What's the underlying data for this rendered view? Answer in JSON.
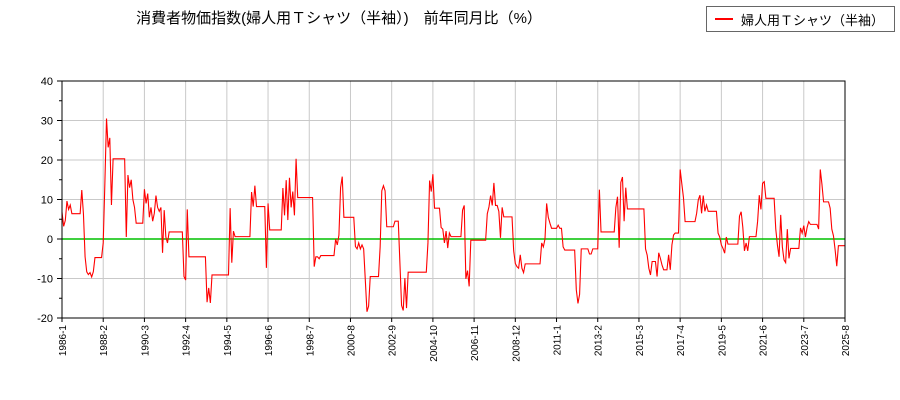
{
  "title": "消費者物価指数(婦人用Ｔシャツ（半袖）)　前年同月比（%）",
  "legend": {
    "label": "婦人用Ｔシャツ（半袖）",
    "line_color": "#ff0000"
  },
  "chart_data": {
    "type": "line",
    "title": "消費者物価指数(婦人用Ｔシャツ（半袖）)　前年同月比（%）",
    "xlabel": "",
    "ylabel": "",
    "x_start": "1986-1",
    "x_end": "2025-8",
    "x_tick_labels": [
      "1986-1",
      "1988-2",
      "1990-3",
      "1992-4",
      "1994-5",
      "1996-6",
      "1998-7",
      "2000-8",
      "2002-9",
      "2004-10",
      "2006-11",
      "2008-12",
      "2011-1",
      "2013-2",
      "2015-3",
      "2017-4",
      "2019-5",
      "2021-6",
      "2023-7",
      "2025-8"
    ],
    "x_tick_step_months": 25,
    "ylim": [
      -20,
      40
    ],
    "y_ticks": [
      40,
      30,
      20,
      10,
      0,
      -10,
      -20
    ],
    "y_minor_step": 5,
    "grid": "on",
    "grid_color": "#c9c9c9",
    "zero_line_color": "#00c000",
    "axis_color": "#000000",
    "legend_position": "top-right",
    "series": [
      {
        "name": "婦人用Ｔシャツ（半袖）",
        "color": "#ff0000",
        "values": [
          6.8,
          3.2,
          4.7,
          9.6,
          7.5,
          8.6,
          6.4,
          6.4,
          6.4,
          6.4,
          6.4,
          6.4,
          12.4,
          6.4,
          -4.5,
          -8.3,
          -9.0,
          -8.5,
          -9.6,
          -8.3,
          -4.7,
          -4.7,
          -4.7,
          -4.7,
          -4.7,
          -1.0,
          14.0,
          30.5,
          23.2,
          25.6,
          8.6,
          20.3,
          20.3,
          20.3,
          20.3,
          20.3,
          20.3,
          20.3,
          20.3,
          0.5,
          16.2,
          13.0,
          15.0,
          10.0,
          8.0,
          4.0,
          4.0,
          4.0,
          4.0,
          4.0,
          12.6,
          9.0,
          11.5,
          5.5,
          8.0,
          4.5,
          6.5,
          11.0,
          8.0,
          7.0,
          8.0,
          -3.5,
          7.3,
          0.5,
          -1.0,
          1.8,
          1.8,
          1.8,
          1.8,
          1.8,
          1.8,
          1.8,
          1.8,
          1.8,
          -9.5,
          -10.4,
          7.5,
          -4.5,
          -4.5,
          -4.5,
          -4.5,
          -4.5,
          -4.5,
          -4.5,
          -4.5,
          -4.5,
          -4.5,
          -4.5,
          -16.0,
          -12.4,
          -16.2,
          -9.1,
          -9.1,
          -9.1,
          -9.1,
          -9.1,
          -9.1,
          -9.1,
          -9.1,
          -9.1,
          -9.1,
          -9.1,
          7.8,
          -6.0,
          2.0,
          0.6,
          0.6,
          0.6,
          0.6,
          0.6,
          0.6,
          0.6,
          0.6,
          0.6,
          0.6,
          11.9,
          8.2,
          13.5,
          8.2,
          8.2,
          8.2,
          8.2,
          8.2,
          8.2,
          -7.3,
          9.0,
          2.3,
          2.3,
          2.3,
          2.3,
          2.3,
          2.3,
          2.3,
          2.3,
          12.9,
          6.0,
          14.9,
          4.8,
          15.5,
          8.0,
          12.0,
          6.0,
          20.3,
          10.5,
          10.5,
          10.5,
          10.5,
          10.5,
          10.5,
          10.5,
          10.5,
          10.5,
          10.5,
          -7.0,
          -4.5,
          -4.5,
          -5.0,
          -4.2,
          -4.2,
          -4.2,
          -4.2,
          -4.2,
          -4.2,
          -4.2,
          -4.2,
          -4.2,
          0.0,
          -1.5,
          1.0,
          13.0,
          15.8,
          5.5,
          5.5,
          5.5,
          5.5,
          5.5,
          5.5,
          5.5,
          -1.9,
          -2.5,
          -1.0,
          -2.5,
          -1.5,
          -2.5,
          -10.4,
          -18.4,
          -17.0,
          -9.5,
          -9.5,
          -9.5,
          -9.5,
          -9.5,
          -9.5,
          -2.0,
          12.2,
          13.5,
          12.2,
          3.1,
          3.1,
          3.1,
          3.1,
          3.1,
          4.5,
          4.5,
          4.5,
          -6.2,
          -16.8,
          -18.1,
          -9.9,
          -17.5,
          -8.4,
          -8.4,
          -8.4,
          -8.4,
          -8.4,
          -8.4,
          -8.4,
          -8.4,
          -8.4,
          -8.4,
          -8.4,
          -8.4,
          -1.0,
          14.8,
          12.0,
          16.4,
          7.8,
          7.8,
          7.8,
          7.8,
          2.9,
          2.5,
          -1.0,
          2.0,
          -2.3,
          1.5,
          0.6,
          0.6,
          0.6,
          0.6,
          0.6,
          0.6,
          0.6,
          7.3,
          8.5,
          -10.1,
          -8.0,
          -12.0,
          -0.3,
          -0.3,
          -0.3,
          -0.3,
          -0.3,
          -0.3,
          -0.3,
          -0.3,
          -0.3,
          -0.3,
          6.4,
          8.1,
          11.0,
          8.5,
          14.2,
          8.5,
          8.5,
          7.0,
          0.3,
          8.0,
          5.6,
          5.6,
          5.6,
          5.6,
          5.6,
          5.6,
          -3.0,
          -6.2,
          -7.0,
          -7.4,
          -4.0,
          -7.4,
          -8.5,
          -6.3,
          -6.3,
          -6.3,
          -6.3,
          -6.3,
          -6.3,
          -6.3,
          -6.3,
          -6.3,
          -6.3,
          -1.0,
          -2.0,
          0.0,
          9.0,
          5.5,
          4.0,
          2.7,
          2.7,
          2.7,
          2.7,
          3.5,
          2.7,
          2.7,
          -2.0,
          -2.8,
          -2.8,
          -2.8,
          -2.8,
          -2.8,
          -2.8,
          -2.8,
          -12.9,
          -16.3,
          -14.0,
          -2.5,
          -2.5,
          -2.5,
          -2.5,
          -2.5,
          -3.8,
          -3.8,
          -2.5,
          -2.5,
          -2.5,
          -2.5,
          12.5,
          1.8,
          1.8,
          1.8,
          1.8,
          1.8,
          1.8,
          1.8,
          1.8,
          1.8,
          8.0,
          10.7,
          -2.2,
          14.3,
          15.7,
          4.5,
          13.0,
          7.6,
          7.6,
          7.6,
          7.6,
          7.6,
          7.6,
          7.6,
          7.6,
          7.6,
          7.6,
          7.6,
          -2.5,
          -4.1,
          -7.4,
          -9.1,
          -5.7,
          -5.7,
          -5.7,
          -9.5,
          -3.5,
          -4.9,
          -6.6,
          -7.8,
          -7.8,
          -7.8,
          -4.0,
          -7.8,
          -1.5,
          1.0,
          1.5,
          1.5,
          1.5,
          17.6,
          14.0,
          10.5,
          4.4,
          4.4,
          4.4,
          4.4,
          4.4,
          4.4,
          4.4,
          6.5,
          9.9,
          11.1,
          6.5,
          11.0,
          7.0,
          8.6,
          7.0,
          7.0,
          7.0,
          7.0,
          7.0,
          7.0,
          1.5,
          0.5,
          -1.5,
          -2.4,
          -3.6,
          0.5,
          -1.3,
          -1.3,
          -1.3,
          -1.3,
          -1.3,
          -1.3,
          -1.3,
          5.8,
          6.9,
          3.0,
          -3.0,
          -1.0,
          -3.0,
          0.6,
          0.6,
          0.6,
          0.6,
          0.6,
          4.5,
          11.1,
          7.5,
          14.1,
          14.5,
          10.3,
          10.3,
          10.3,
          10.3,
          10.3,
          10.3,
          2.5,
          -1.5,
          -4.5,
          6.1,
          -2.0,
          -5.3,
          -6.0,
          2.5,
          -4.9,
          -2.4,
          -2.4,
          -2.4,
          -2.4,
          -2.4,
          -2.4,
          2.8,
          1.5,
          3.4,
          0.5,
          2.9,
          4.4,
          3.7,
          3.7,
          3.7,
          3.7,
          3.7,
          2.5,
          17.6,
          13.9,
          9.4,
          9.4,
          9.4,
          9.4,
          7.8,
          2.5,
          0.8,
          -2.7,
          -6.9,
          -1.7,
          -1.7,
          -1.7,
          -1.7,
          -1.7
        ]
      }
    ]
  }
}
